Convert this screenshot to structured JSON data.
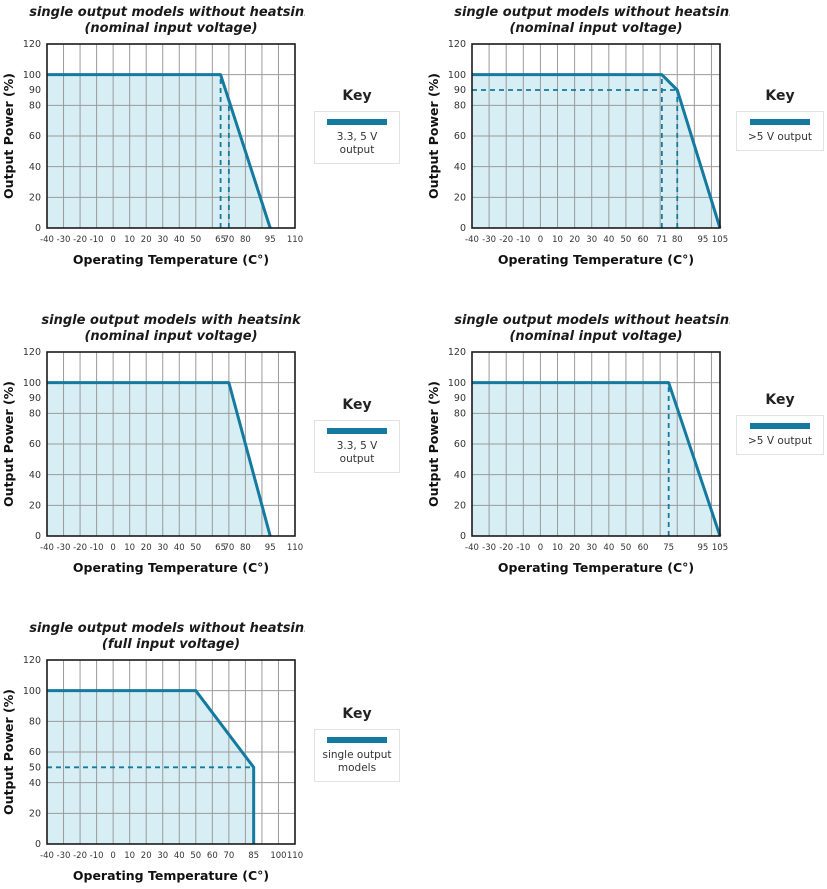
{
  "colors": {
    "accent": "#147a9f",
    "region_fill": "#d6eef4",
    "grid": "#9a9a9a",
    "axis": "#1a1a1a",
    "text": "#333333"
  },
  "chart_data": [
    {
      "type": "line",
      "title_line1": "single output models without heatsink",
      "title_line2": "(nominal input voltage)",
      "xlabel": "Operating Temperature (C°)",
      "ylabel": "Output Power (%)",
      "x_min": -40,
      "x_max": 110,
      "y_min": 0,
      "y_max": 120,
      "x_grid_step": 10,
      "y_grid_step": 20,
      "x_ticks": [
        -40,
        -30,
        -20,
        -10,
        0,
        10,
        20,
        30,
        40,
        50,
        65,
        70,
        80,
        95,
        110
      ],
      "y_ticks": [
        0,
        20,
        40,
        60,
        80,
        90,
        100,
        120
      ],
      "points": [
        [
          -40,
          100
        ],
        [
          65,
          100
        ],
        [
          95,
          0
        ]
      ],
      "dashed_v": [
        {
          "x": 65,
          "to_y": 100
        },
        {
          "x": 70,
          "to_y": 83
        }
      ],
      "dashed_h": [],
      "key": {
        "title": "Key",
        "label": "3.3, 5 V output"
      }
    },
    {
      "type": "line",
      "title_line1": "single output models without heatsink",
      "title_line2": "(nominal input voltage)",
      "xlabel": "Operating Temperature (C°)",
      "ylabel": "Output Power (%)",
      "x_min": -40,
      "x_max": 105,
      "y_min": 0,
      "y_max": 120,
      "x_grid_step": 10,
      "y_grid_step": 20,
      "x_ticks": [
        -40,
        -30,
        -20,
        -10,
        0,
        10,
        20,
        30,
        40,
        50,
        60,
        71,
        80,
        95,
        105
      ],
      "y_ticks": [
        0,
        20,
        40,
        60,
        80,
        90,
        100,
        120
      ],
      "points": [
        [
          -40,
          100
        ],
        [
          71,
          100
        ],
        [
          80,
          90
        ],
        [
          105,
          0
        ]
      ],
      "dashed_v": [
        {
          "x": 71,
          "to_y": 100
        },
        {
          "x": 80,
          "to_y": 90
        }
      ],
      "dashed_h": [
        {
          "y": 90,
          "to_x": 80
        }
      ],
      "key": {
        "title": "Key",
        "label": ">5 V output"
      }
    },
    {
      "type": "line",
      "title_line1": "single output models with heatsink",
      "title_line2": "(nominal input voltage)",
      "xlabel": "Operating Temperature (C°)",
      "ylabel": "Output Power (%)",
      "x_min": -40,
      "x_max": 110,
      "y_min": 0,
      "y_max": 120,
      "x_grid_step": 10,
      "y_grid_step": 20,
      "x_ticks": [
        -40,
        -30,
        -20,
        -10,
        0,
        10,
        20,
        30,
        40,
        50,
        65,
        70,
        80,
        95,
        110
      ],
      "y_ticks": [
        0,
        20,
        40,
        60,
        80,
        90,
        100,
        120
      ],
      "points": [
        [
          -40,
          100
        ],
        [
          70,
          100
        ],
        [
          95,
          0
        ]
      ],
      "dashed_v": [],
      "dashed_h": [],
      "key": {
        "title": "Key",
        "label": "3.3, 5 V output"
      }
    },
    {
      "type": "line",
      "title_line1": "single output models without heatsink",
      "title_line2": "(nominal input voltage)",
      "xlabel": "Operating Temperature (C°)",
      "ylabel": "Output Power (%)",
      "x_min": -40,
      "x_max": 105,
      "y_min": 0,
      "y_max": 120,
      "x_grid_step": 10,
      "y_grid_step": 20,
      "x_ticks": [
        -40,
        -30,
        -20,
        -10,
        0,
        10,
        20,
        30,
        40,
        50,
        60,
        75,
        95,
        105
      ],
      "y_ticks": [
        0,
        20,
        40,
        60,
        80,
        90,
        100,
        120
      ],
      "points": [
        [
          -40,
          100
        ],
        [
          75,
          100
        ],
        [
          105,
          0
        ]
      ],
      "dashed_v": [
        {
          "x": 75,
          "to_y": 100
        }
      ],
      "dashed_h": [],
      "key": {
        "title": "Key",
        "label": ">5 V output"
      }
    },
    {
      "type": "line",
      "title_line1": "single output models without heatsink",
      "title_line2": "(full input voltage)",
      "xlabel": "Operating Temperature (C°)",
      "ylabel": "Output Power (%)",
      "x_min": -40,
      "x_max": 110,
      "y_min": 0,
      "y_max": 120,
      "x_grid_step": 10,
      "y_grid_step": 20,
      "x_ticks": [
        -40,
        -30,
        -20,
        -10,
        0,
        10,
        20,
        30,
        40,
        50,
        60,
        70,
        85,
        100,
        110
      ],
      "y_ticks": [
        0,
        20,
        40,
        50,
        60,
        80,
        100,
        120
      ],
      "points": [
        [
          -40,
          100
        ],
        [
          50,
          100
        ],
        [
          85,
          50
        ],
        [
          85,
          0
        ]
      ],
      "dashed_v": [],
      "dashed_h": [
        {
          "y": 50,
          "to_x": 85
        }
      ],
      "key": {
        "title": "Key",
        "label": "single output models"
      }
    }
  ]
}
